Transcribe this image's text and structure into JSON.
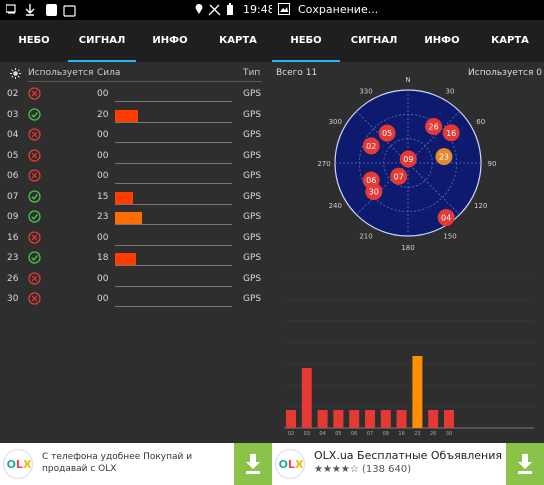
{
  "left": {
    "statusbar": {
      "time": "19:48"
    },
    "tabs": [
      {
        "label": "НЕБО",
        "active": false
      },
      {
        "label": "СИГНАЛ",
        "active": true
      },
      {
        "label": "ИНФО",
        "active": false
      },
      {
        "label": "КАРТА",
        "active": false
      }
    ],
    "signal": {
      "headers": {
        "used": "Используется",
        "strength": "Сила",
        "type": "Тип"
      },
      "rows": [
        {
          "id": "02",
          "used": false,
          "strength": "00",
          "frac": 0,
          "type": "GPS",
          "color": "#ff3d00"
        },
        {
          "id": "03",
          "used": true,
          "strength": "20",
          "frac": 0.2,
          "type": "GPS",
          "color": "#ff3d00"
        },
        {
          "id": "04",
          "used": false,
          "strength": "00",
          "frac": 0,
          "type": "GPS",
          "color": "#ff3d00"
        },
        {
          "id": "05",
          "used": false,
          "strength": "00",
          "frac": 0,
          "type": "GPS",
          "color": "#ff3d00"
        },
        {
          "id": "06",
          "used": false,
          "strength": "00",
          "frac": 0,
          "type": "GPS",
          "color": "#ff3d00"
        },
        {
          "id": "07",
          "used": true,
          "strength": "15",
          "frac": 0.15,
          "type": "GPS",
          "color": "#ff3d00"
        },
        {
          "id": "09",
          "used": true,
          "strength": "23",
          "frac": 0.23,
          "type": "GPS",
          "color": "#ff6d00"
        },
        {
          "id": "16",
          "used": false,
          "strength": "00",
          "frac": 0,
          "type": "GPS",
          "color": "#ff3d00"
        },
        {
          "id": "23",
          "used": true,
          "strength": "18",
          "frac": 0.18,
          "type": "GPS",
          "color": "#ff3d00"
        },
        {
          "id": "26",
          "used": false,
          "strength": "00",
          "frac": 0,
          "type": "GPS",
          "color": "#ff3d00"
        },
        {
          "id": "30",
          "used": false,
          "strength": "00",
          "frac": 0,
          "type": "GPS",
          "color": "#ff3d00"
        }
      ]
    },
    "ad": {
      "logo": "OLX",
      "text": "С телефона удобнее Покупай и продавай с OLX",
      "download_icon": "download-arrow-icon"
    }
  },
  "right": {
    "statusbar": {
      "text": "Сохранение..."
    },
    "tabs": [
      {
        "label": "НЕБО",
        "active": true
      },
      {
        "label": "СИГНАЛ",
        "active": false
      },
      {
        "label": "ИНФО",
        "active": false
      },
      {
        "label": "КАРТА",
        "active": false
      }
    ],
    "sky": {
      "total": "Всего 11",
      "used": "Используется 0",
      "compass": [
        "N",
        "30",
        "60",
        "90",
        "120",
        "150",
        "180",
        "210",
        "240",
        "270",
        "300",
        "330"
      ],
      "satellites": [
        {
          "id": "05",
          "az": 325,
          "el": 45,
          "color": "#e53935"
        },
        {
          "id": "26",
          "az": 35,
          "el": 35,
          "color": "#e53935"
        },
        {
          "id": "02",
          "az": 295,
          "el": 40,
          "color": "#e53935"
        },
        {
          "id": "16",
          "az": 55,
          "el": 25,
          "color": "#e53935"
        },
        {
          "id": "09",
          "az": 5,
          "el": 85,
          "color": "#e53935"
        },
        {
          "id": "23",
          "az": 80,
          "el": 45,
          "color": "#e68a2e"
        },
        {
          "id": "06",
          "az": 245,
          "el": 40,
          "color": "#e53935"
        },
        {
          "id": "07",
          "az": 215,
          "el": 70,
          "color": "#e53935"
        },
        {
          "id": "30",
          "az": 230,
          "el": 35,
          "color": "#e53935"
        },
        {
          "id": "04",
          "az": 145,
          "el": 8,
          "color": "#e53935"
        }
      ]
    },
    "chart_data": {
      "type": "bar",
      "categories": [
        "02",
        "03",
        "04",
        "05",
        "06",
        "07",
        "09",
        "16",
        "23",
        "26",
        "30"
      ],
      "values": [
        6,
        20,
        6,
        6,
        6,
        6,
        6,
        6,
        24,
        6,
        6
      ],
      "colors": [
        "#e53935",
        "#e53935",
        "#e53935",
        "#e53935",
        "#e53935",
        "#e53935",
        "#e53935",
        "#e53935",
        "#ff8f00",
        "#e53935",
        "#e53935"
      ],
      "ylim": [
        0,
        50
      ],
      "grid": true
    },
    "ad": {
      "logo": "OLX",
      "title": "OLX.ua Бесплатные Объявления",
      "rating": "★★★★☆",
      "reviews": "(138 640)",
      "download_icon": "download-arrow-icon"
    }
  }
}
